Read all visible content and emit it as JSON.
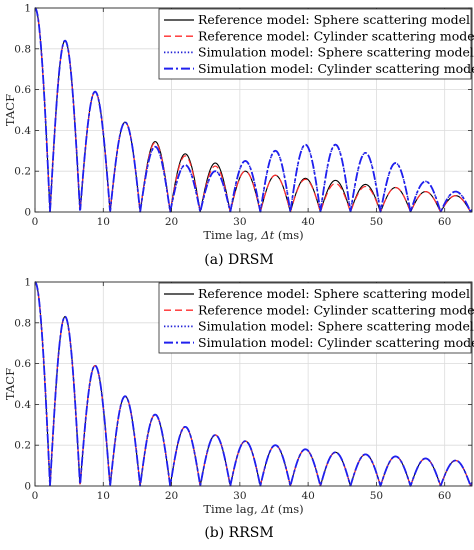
{
  "chart_data": [
    {
      "type": "line",
      "caption": "(a)  DRSM",
      "xlabel_prefix": "Time lag, ",
      "xlabel_var": "Δt",
      "xlabel_suffix": " (ms)",
      "ylabel": "TACF",
      "xlim": [
        0,
        64
      ],
      "ylim": [
        0,
        1
      ],
      "xticks": [
        0,
        10,
        20,
        30,
        40,
        50,
        60
      ],
      "xtick_labels": [
        "0",
        "10",
        "20",
        "30",
        "40",
        "50",
        "60"
      ],
      "yticks": [
        0,
        0.2,
        0.4,
        0.6,
        0.8,
        1
      ],
      "ytick_labels": [
        "0",
        "0.2",
        "0.4",
        "0.6",
        "0.8",
        "1"
      ],
      "grid": true,
      "legend_position": "top-right",
      "lobe_period_ms": 4.4,
      "series": [
        {
          "name": "Reference model:  Sphere scattering model",
          "color": "#000000",
          "style": "solid",
          "peaks": [
            1.0,
            0.84,
            0.59,
            0.44,
            0.345,
            0.285,
            0.24,
            0.2,
            0.18,
            0.165,
            0.155,
            0.135,
            0.12,
            0.1,
            0.08
          ]
        },
        {
          "name": "Reference model:  Cylinder scattering model",
          "color": "#ff2b2b",
          "style": "dashed",
          "peaks": [
            1.0,
            0.84,
            0.59,
            0.44,
            0.34,
            0.275,
            0.225,
            0.2,
            0.18,
            0.16,
            0.14,
            0.125,
            0.12,
            0.1,
            0.08
          ]
        },
        {
          "name": "Simulation model:  Sphere scattering model",
          "color": "#1f1fd6",
          "style": "dotted",
          "peaks": [
            1.0,
            0.84,
            0.59,
            0.44,
            0.32,
            0.23,
            0.2,
            0.25,
            0.3,
            0.33,
            0.33,
            0.29,
            0.24,
            0.15,
            0.1
          ]
        },
        {
          "name": "Simulation model:  Cylinder scattering model",
          "color": "#2020ee",
          "style": "dashdot",
          "peaks": [
            1.0,
            0.84,
            0.59,
            0.44,
            0.32,
            0.23,
            0.2,
            0.25,
            0.3,
            0.33,
            0.33,
            0.29,
            0.24,
            0.15,
            0.1
          ]
        }
      ]
    },
    {
      "type": "line",
      "caption": "(b)  RRSM",
      "xlabel_prefix": "Time lag, ",
      "xlabel_var": "Δt",
      "xlabel_suffix": " (ms)",
      "ylabel": "TACF",
      "xlim": [
        0,
        64
      ],
      "ylim": [
        0,
        1
      ],
      "xticks": [
        0,
        10,
        20,
        30,
        40,
        50,
        60
      ],
      "xtick_labels": [
        "0",
        "10",
        "20",
        "30",
        "40",
        "50",
        "60"
      ],
      "yticks": [
        0,
        0.2,
        0.4,
        0.6,
        0.8,
        1
      ],
      "ytick_labels": [
        "0",
        "0.2",
        "0.4",
        "0.6",
        "0.8",
        "1"
      ],
      "grid": true,
      "legend_position": "top-right",
      "lobe_period_ms": 4.4,
      "series": [
        {
          "name": "Reference model:  Sphere scattering model",
          "color": "#000000",
          "style": "solid",
          "peaks": [
            1.0,
            0.83,
            0.59,
            0.44,
            0.35,
            0.29,
            0.25,
            0.22,
            0.2,
            0.18,
            0.165,
            0.155,
            0.145,
            0.135,
            0.125
          ]
        },
        {
          "name": "Reference model:  Cylinder scattering model",
          "color": "#ff2b2b",
          "style": "dashed",
          "peaks": [
            1.0,
            0.83,
            0.59,
            0.44,
            0.35,
            0.29,
            0.25,
            0.22,
            0.2,
            0.18,
            0.165,
            0.155,
            0.145,
            0.135,
            0.125
          ]
        },
        {
          "name": "Simulation model:  Sphere scattering model",
          "color": "#1f1fd6",
          "style": "dotted",
          "peaks": [
            1.0,
            0.83,
            0.59,
            0.44,
            0.35,
            0.29,
            0.25,
            0.22,
            0.2,
            0.18,
            0.165,
            0.155,
            0.145,
            0.135,
            0.125
          ]
        },
        {
          "name": "Simulation model:  Cylinder scattering model",
          "color": "#2020ee",
          "style": "dashdot",
          "peaks": [
            1.0,
            0.83,
            0.59,
            0.44,
            0.35,
            0.29,
            0.25,
            0.22,
            0.2,
            0.18,
            0.165,
            0.155,
            0.145,
            0.135,
            0.125
          ]
        }
      ]
    }
  ]
}
